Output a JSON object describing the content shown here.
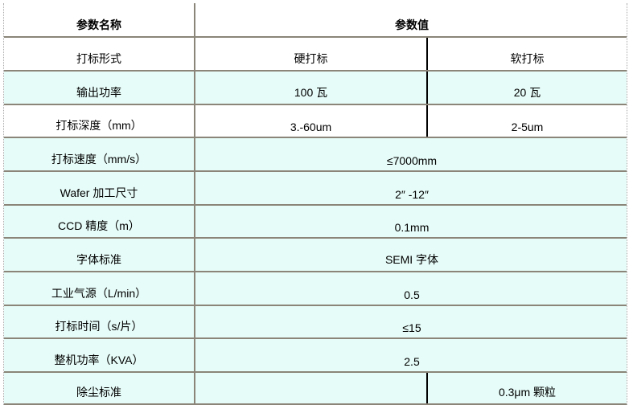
{
  "header": {
    "name": "参数名称",
    "value": "参数值"
  },
  "rows": [
    {
      "name": "打标形式",
      "a": "硬打标",
      "b": "软打标"
    },
    {
      "name": "输出功率",
      "a": "100 瓦",
      "b": "20 瓦"
    },
    {
      "name": "打标深度（mm）",
      "a": "3.-60um",
      "b": "2-5um"
    },
    {
      "name": "打标速度（mm/s）",
      "value": "≤7000mm"
    },
    {
      "name": "Wafer 加工尺寸",
      "value": "2″ -12″"
    },
    {
      "name": "CCD 精度（m）",
      "value": "0.1mm"
    },
    {
      "name": "字体标准",
      "value": "SEMI 字体"
    },
    {
      "name": "工业气源（L/min）",
      "value": "0.5"
    },
    {
      "name": "打标时间（s/片）",
      "value": "≤15"
    },
    {
      "name": "整机功率（KVA）",
      "value": "2.5"
    },
    {
      "name": "除尘标准",
      "a": "",
      "b": "0.3μm 颗粒"
    }
  ]
}
